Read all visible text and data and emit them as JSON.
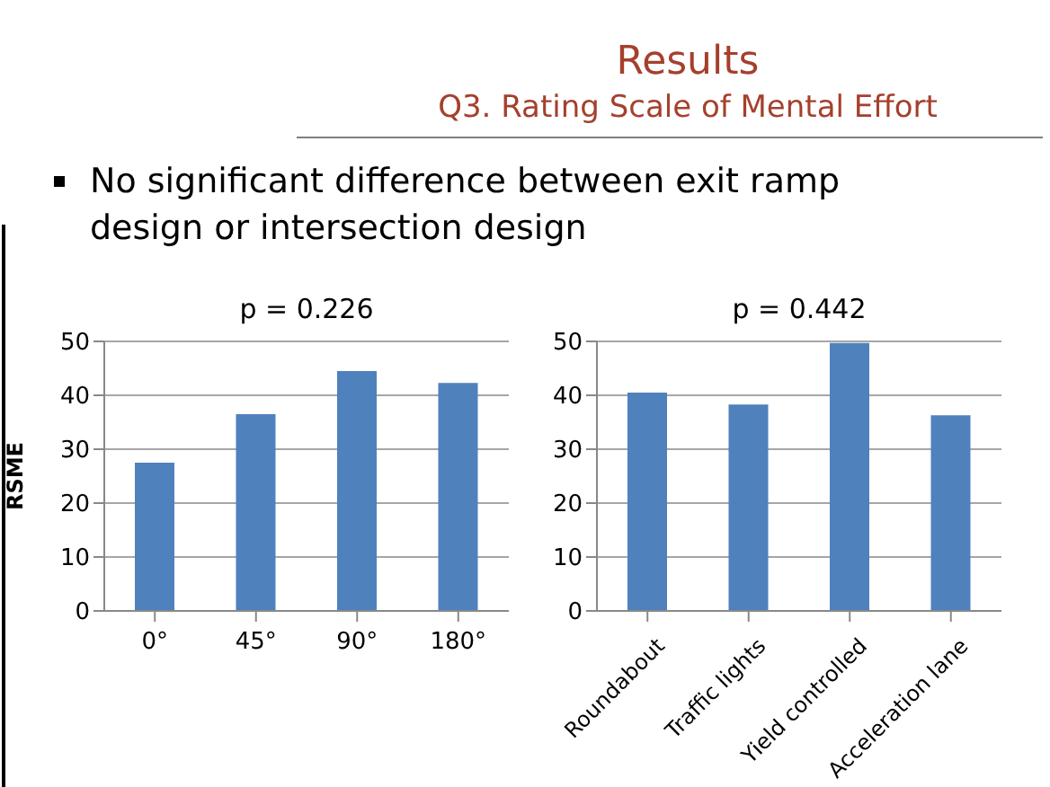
{
  "chart_data": [
    {
      "type": "bar",
      "title": "p = 0.226",
      "ylabel": "RSME",
      "categories": [
        "0°",
        "45°",
        "90°",
        "180°"
      ],
      "values": [
        27.5,
        36.5,
        44.5,
        42.3
      ],
      "color": "#4f81bd",
      "ylim": [
        0,
        50
      ],
      "yticks": [
        0,
        10,
        20,
        30,
        40,
        50
      ],
      "grid": "y",
      "annotations": [
        "Results",
        "Q3. Rating Scale of Mental Effort",
        "No significant difference between exit ramp design or intersection design"
      ]
    },
    {
      "type": "bar",
      "title": "p = 0.442",
      "categories": [
        "Roundabout",
        "Traffic lights",
        "Yield controlled",
        "Acceleration lane"
      ],
      "values": [
        40.5,
        38.3,
        49.7,
        36.3
      ],
      "color": "#4f81bd",
      "ylim": [
        0,
        50
      ],
      "yticks": [
        0,
        10,
        20,
        30,
        40,
        50
      ],
      "grid": "y"
    }
  ]
}
